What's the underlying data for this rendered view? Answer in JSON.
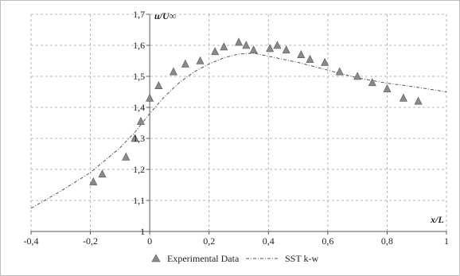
{
  "chart_data": {
    "type": "scatter",
    "xlabel": "x/L",
    "ylabel": "u/U∞",
    "xlim": [
      -0.4,
      1.0
    ],
    "ylim": [
      1.0,
      1.7
    ],
    "x_ticks": [
      "-0,4",
      "-0,2",
      "0",
      "0,2",
      "0,4",
      "0,6",
      "0,8",
      "1"
    ],
    "y_ticks": [
      "1",
      "1,1",
      "1,2",
      "1,3",
      "1,4",
      "1,5",
      "1,6",
      "1,7"
    ],
    "grid": "dashed",
    "legend_position": "bottom",
    "series": [
      {
        "name": "Experimental Data",
        "kind": "scatter",
        "marker": "triangle",
        "color": "#8a8a8a",
        "points": [
          [
            -0.19,
            1.16
          ],
          [
            -0.16,
            1.185
          ],
          [
            -0.08,
            1.24
          ],
          [
            -0.05,
            1.3
          ],
          [
            -0.03,
            1.355
          ],
          [
            0.0,
            1.43
          ],
          [
            0.03,
            1.47
          ],
          [
            0.08,
            1.515
          ],
          [
            0.12,
            1.54
          ],
          [
            0.17,
            1.55
          ],
          [
            0.22,
            1.58
          ],
          [
            0.25,
            1.595
          ],
          [
            0.3,
            1.61
          ],
          [
            0.325,
            1.6
          ],
          [
            0.35,
            1.585
          ],
          [
            0.405,
            1.59
          ],
          [
            0.43,
            1.6
          ],
          [
            0.46,
            1.585
          ],
          [
            0.51,
            1.57
          ],
          [
            0.54,
            1.555
          ],
          [
            0.59,
            1.545
          ],
          [
            0.64,
            1.515
          ],
          [
            0.7,
            1.5
          ],
          [
            0.75,
            1.48
          ],
          [
            0.8,
            1.46
          ],
          [
            0.855,
            1.43
          ],
          [
            0.905,
            1.42
          ]
        ]
      },
      {
        "name": "SST k-w",
        "kind": "line",
        "style": "dash-dot",
        "color": "#555555",
        "points": [
          [
            -0.4,
            1.075
          ],
          [
            -0.3,
            1.13
          ],
          [
            -0.2,
            1.19
          ],
          [
            -0.1,
            1.27
          ],
          [
            -0.05,
            1.32
          ],
          [
            0.0,
            1.38
          ],
          [
            0.05,
            1.435
          ],
          [
            0.1,
            1.48
          ],
          [
            0.15,
            1.515
          ],
          [
            0.2,
            1.54
          ],
          [
            0.25,
            1.56
          ],
          [
            0.3,
            1.572
          ],
          [
            0.35,
            1.575
          ],
          [
            0.4,
            1.565
          ],
          [
            0.5,
            1.545
          ],
          [
            0.6,
            1.52
          ],
          [
            0.7,
            1.495
          ],
          [
            0.8,
            1.478
          ],
          [
            0.9,
            1.465
          ],
          [
            1.0,
            1.45
          ]
        ]
      }
    ]
  }
}
